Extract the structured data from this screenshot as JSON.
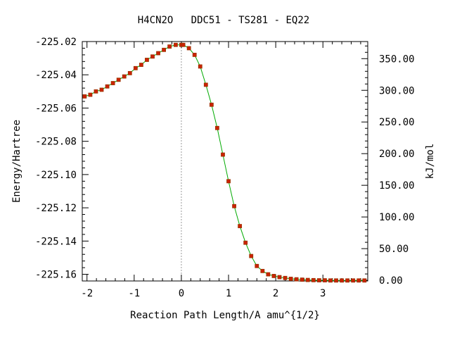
{
  "chart_data": {
    "type": "line",
    "title": "H4CN2O   DDC51 - TS281 - EQ22",
    "xlabel": "Reaction Path Length/A amu^{1/2}",
    "ylabel": "Energy/Hartree",
    "y2label": "kJ/mol",
    "xlim": [
      -2.1,
      3.95
    ],
    "ylim": [
      -225.164,
      -225.02
    ],
    "y2lim": [
      -1.05,
      377.0
    ],
    "x_ticks": [
      -2,
      -1,
      0,
      1,
      2,
      3
    ],
    "x_tick_labels": [
      "-2",
      "-1",
      "0",
      "1",
      "2",
      "3"
    ],
    "y_ticks": [
      -225.02,
      -225.04,
      -225.06,
      -225.08,
      -225.1,
      -225.12,
      -225.14,
      -225.16
    ],
    "y_tick_labels": [
      "-225.02",
      "-225.04",
      "-225.06",
      "-225.08",
      "-225.10",
      "-225.12",
      "-225.14",
      "-225.16"
    ],
    "y2_ticks": [
      0,
      50,
      100,
      150,
      200,
      250,
      300,
      350
    ],
    "y2_tick_labels": [
      "0.00",
      "50.00",
      "100.00",
      "150.00",
      "200.00",
      "250.00",
      "300.00",
      "350.00"
    ],
    "ts_marker_x": 0,
    "colors": {
      "line": "#00aa00",
      "marker_fill": "#cc2200",
      "marker_edge": "#993300",
      "axis": "#000000",
      "ts_line": "#999999"
    },
    "series": [
      {
        "x": [
          -2.05,
          -1.93,
          -1.81,
          -1.69,
          -1.57,
          -1.45,
          -1.33,
          -1.21,
          -1.09,
          -0.97,
          -0.85,
          -0.73,
          -0.61,
          -0.49,
          -0.37,
          -0.25,
          -0.12,
          0.0,
          0.04,
          0.16,
          0.28,
          0.4,
          0.52,
          0.64,
          0.76,
          0.88,
          1.0,
          1.12,
          1.24,
          1.36,
          1.48,
          1.6,
          1.72,
          1.84,
          1.96,
          2.08,
          2.2,
          2.32,
          2.44,
          2.56,
          2.68,
          2.8,
          2.92,
          3.04,
          3.16,
          3.28,
          3.4,
          3.52,
          3.64,
          3.76,
          3.88
        ],
        "y": [
          -225.053,
          -225.052,
          -225.05,
          -225.049,
          -225.047,
          -225.045,
          -225.043,
          -225.041,
          -225.039,
          -225.036,
          -225.034,
          -225.031,
          -225.029,
          -225.027,
          -225.025,
          -225.023,
          -225.022,
          -225.022,
          -225.022,
          -225.024,
          -225.028,
          -225.035,
          -225.046,
          -225.058,
          -225.072,
          -225.088,
          -225.104,
          -225.119,
          -225.131,
          -225.141,
          -225.149,
          -225.155,
          -225.158,
          -225.16,
          -225.161,
          -225.1617,
          -225.1622,
          -225.1627,
          -225.163,
          -225.1632,
          -225.1634,
          -225.1635,
          -225.1636,
          -225.1636,
          -225.1637,
          -225.1637,
          -225.1637,
          -225.1637,
          -225.1637,
          -225.1637,
          -225.1637
        ]
      }
    ]
  }
}
